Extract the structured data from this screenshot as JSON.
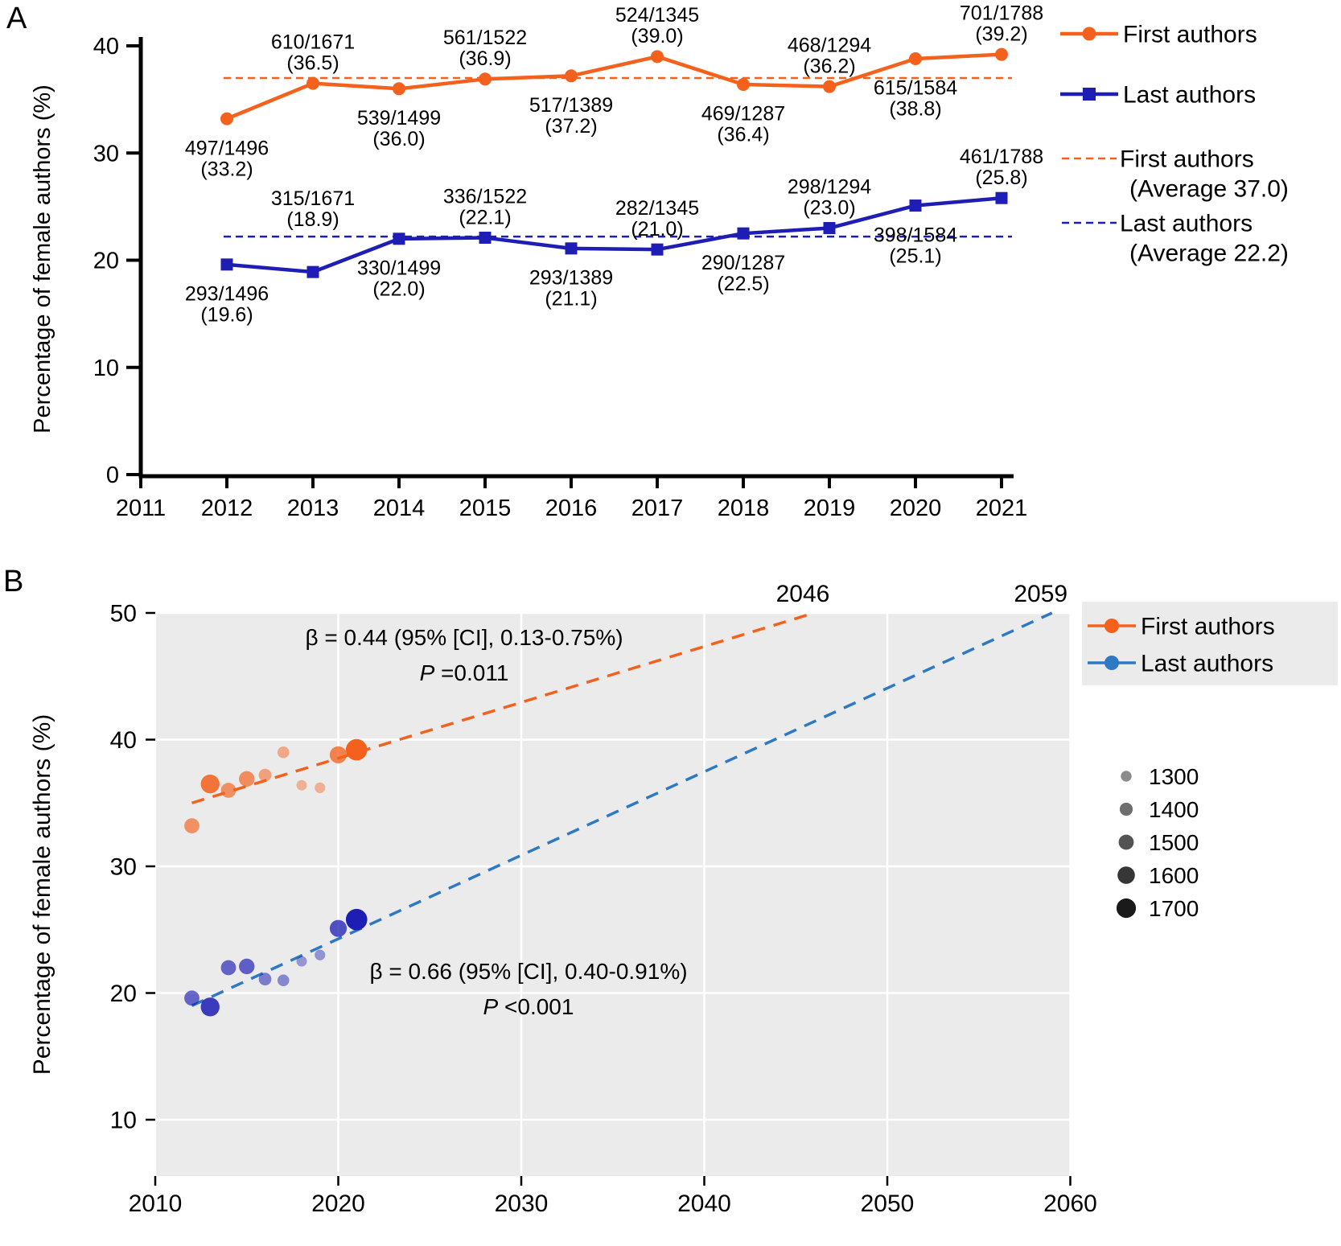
{
  "panels": {
    "a_label": "A",
    "b_label": "B"
  },
  "colors": {
    "first_authors": "#F4611C",
    "last_authors": "#1E1EB4",
    "last_authors_trend": "#2E79C4",
    "plot_background": "#EBEBEB",
    "gridline": "#FFFFFF",
    "axis": "#000000",
    "text": "#000000",
    "size_dot": "#1A1A1A"
  },
  "chart_data": [
    {
      "id": "panelA",
      "type": "line",
      "ylabel": "Percentage of female authors (%)",
      "ylim": [
        0,
        40
      ],
      "yticks": [
        0,
        10,
        20,
        30,
        40
      ],
      "xticks": [
        2011,
        2012,
        2013,
        2014,
        2015,
        2016,
        2017,
        2018,
        2019,
        2020,
        2021
      ],
      "years": [
        2012,
        2013,
        2014,
        2015,
        2016,
        2017,
        2018,
        2019,
        2020,
        2021
      ],
      "series": [
        {
          "name": "First authors",
          "marker": "circle",
          "color_key": "first_authors",
          "values": [
            33.2,
            36.5,
            36.0,
            36.9,
            37.2,
            39.0,
            36.4,
            36.2,
            38.8,
            39.2
          ],
          "labels": [
            "497/1496",
            "610/1671",
            "539/1499",
            "561/1522",
            "517/1389",
            "524/1345",
            "469/1287",
            "468/1294",
            "615/1584",
            "701/1788"
          ],
          "sub_labels": [
            "(33.2)",
            "(36.5)",
            "(36.0)",
            "(36.9)",
            "(37.2)",
            "(39.0)",
            "(36.4)",
            "(36.2)",
            "(38.8)",
            "(39.2)"
          ],
          "label_pos": [
            "below",
            "above",
            "below",
            "above",
            "below",
            "above",
            "below",
            "above",
            "below",
            "above"
          ]
        },
        {
          "name": "Last authors",
          "marker": "square",
          "color_key": "last_authors",
          "values": [
            19.6,
            18.9,
            22.0,
            22.1,
            21.1,
            21.0,
            22.5,
            23.0,
            25.1,
            25.8
          ],
          "labels": [
            "293/1496",
            "315/1671",
            "330/1499",
            "336/1522",
            "293/1389",
            "282/1345",
            "290/1287",
            "298/1294",
            "398/1584",
            "461/1788"
          ],
          "sub_labels": [
            "(19.6)",
            "(18.9)",
            "(22.0)",
            "(22.1)",
            "(21.1)",
            "(21.0)",
            "(22.5)",
            "(23.0)",
            "(25.1)",
            "(25.8)"
          ],
          "label_pos": [
            "below",
            "above-high",
            "below",
            "above",
            "below",
            "above",
            "below",
            "above",
            "below",
            "above"
          ]
        }
      ],
      "average_lines": [
        {
          "value": 37.0,
          "color_key": "first_authors",
          "legend_line1": "First authors",
          "legend_line2": "(Average 37.0)"
        },
        {
          "value": 22.2,
          "color_key": "last_authors",
          "legend_line1": "Last authors",
          "legend_line2": "(Average 22.2)"
        }
      ],
      "legend": [
        {
          "label": "First authors",
          "marker": "circle",
          "color_key": "first_authors"
        },
        {
          "label": "Last authors",
          "marker": "square",
          "color_key": "last_authors"
        }
      ]
    },
    {
      "id": "panelB",
      "type": "scatter",
      "ylabel": "Percentage of female authors (%)",
      "ylim": [
        10,
        50
      ],
      "yticks": [
        10,
        20,
        30,
        40,
        50
      ],
      "xticks": [
        2010,
        2020,
        2030,
        2040,
        2050,
        2060
      ],
      "years": [
        2012,
        2013,
        2014,
        2015,
        2016,
        2017,
        2018,
        2019,
        2020,
        2021
      ],
      "totals": [
        1496,
        1671,
        1499,
        1522,
        1389,
        1345,
        1287,
        1294,
        1584,
        1788
      ],
      "series": [
        {
          "name": "First authors",
          "color_key": "first_authors",
          "values": [
            33.2,
            36.5,
            36.0,
            36.9,
            37.2,
            39.0,
            36.4,
            36.2,
            38.8,
            39.2
          ],
          "trend": {
            "start_year": 2012,
            "start_value": 35.0,
            "end_year": 2046,
            "end_value": 50,
            "end_label": "2046",
            "beta_text": "β = 0.44 (95% [CI], 0.13-0.75%)",
            "p_prefix": "P",
            "p_suffix": " =0.011"
          }
        },
        {
          "name": "Last authors",
          "color_key": "last_authors",
          "trend_color_key": "last_authors_trend",
          "values": [
            19.6,
            18.9,
            22.0,
            22.1,
            21.1,
            21.0,
            22.5,
            23.0,
            25.1,
            25.8
          ],
          "trend": {
            "start_year": 2012,
            "start_value": 19.0,
            "end_year": 2059,
            "end_value": 50,
            "end_label": "2059",
            "beta_text": "β = 0.66 (95% [CI], 0.40-0.91%)",
            "p_prefix": "P",
            "p_suffix": " <0.001"
          }
        }
      ],
      "legend": [
        {
          "label": "First authors",
          "color_key": "first_authors"
        },
        {
          "label": "Last authors",
          "color_key": "last_authors_trend"
        }
      ],
      "size_legend": [
        1300,
        1400,
        1500,
        1600,
        1700
      ]
    }
  ]
}
